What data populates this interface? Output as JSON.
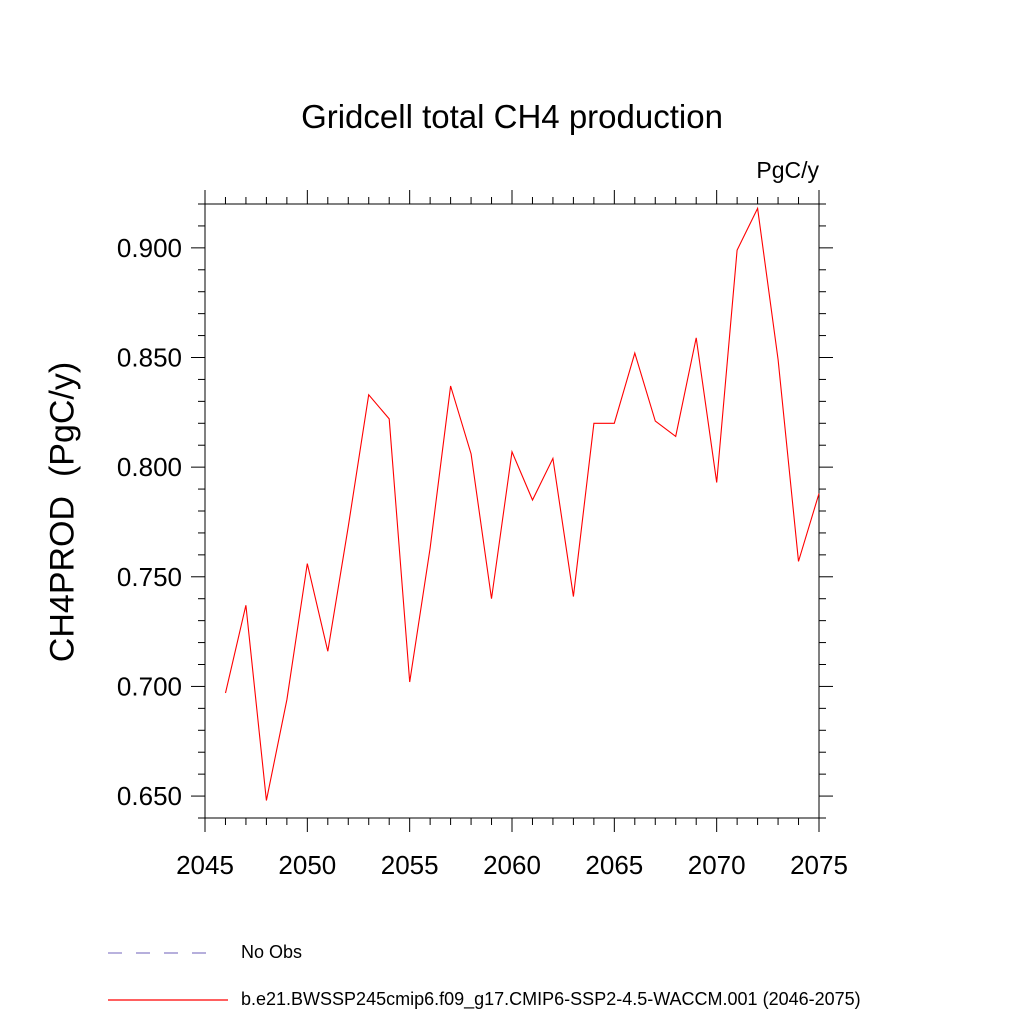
{
  "chart_data": {
    "type": "line",
    "title": "Gridcell total CH4 production",
    "units_label": "PgC/y",
    "xlabel": "",
    "ylabel": "CH4PROD  (PgC/y)",
    "xlim": [
      2045,
      2075
    ],
    "ylim": [
      0.64,
      0.92
    ],
    "x_ticks": [
      2045,
      2050,
      2055,
      2060,
      2065,
      2070,
      2075
    ],
    "x_tick_labels": [
      "2045",
      "2050",
      "2055",
      "2060",
      "2065",
      "2070",
      "2075"
    ],
    "y_ticks": [
      0.65,
      0.7,
      0.75,
      0.8,
      0.85,
      0.9
    ],
    "y_tick_labels": [
      "0.650",
      "0.700",
      "0.750",
      "0.800",
      "0.850",
      "0.900"
    ],
    "grid": false,
    "legend_position": "bottom",
    "series": [
      {
        "name": "b.e21.BWSSP245cmip6.f09_g17.CMIP6-SSP2-4.5-WACCM.001 (2046-2075)",
        "color": "#ff0000",
        "style": "solid",
        "x": [
          2046,
          2047,
          2048,
          2049,
          2050,
          2051,
          2052,
          2053,
          2054,
          2055,
          2056,
          2057,
          2058,
          2059,
          2060,
          2061,
          2062,
          2063,
          2064,
          2065,
          2066,
          2067,
          2068,
          2069,
          2070,
          2071,
          2072,
          2073,
          2074,
          2075
        ],
        "y": [
          0.697,
          0.737,
          0.648,
          0.694,
          0.756,
          0.716,
          0.773,
          0.833,
          0.822,
          0.702,
          0.763,
          0.837,
          0.806,
          0.74,
          0.807,
          0.785,
          0.804,
          0.741,
          0.82,
          0.82,
          0.852,
          0.821,
          0.814,
          0.859,
          0.793,
          0.899,
          0.918,
          0.849,
          0.757,
          0.788
        ]
      },
      {
        "name": "No Obs",
        "color": "#8a7fc8",
        "style": "dashed",
        "x": [],
        "y": []
      }
    ]
  }
}
